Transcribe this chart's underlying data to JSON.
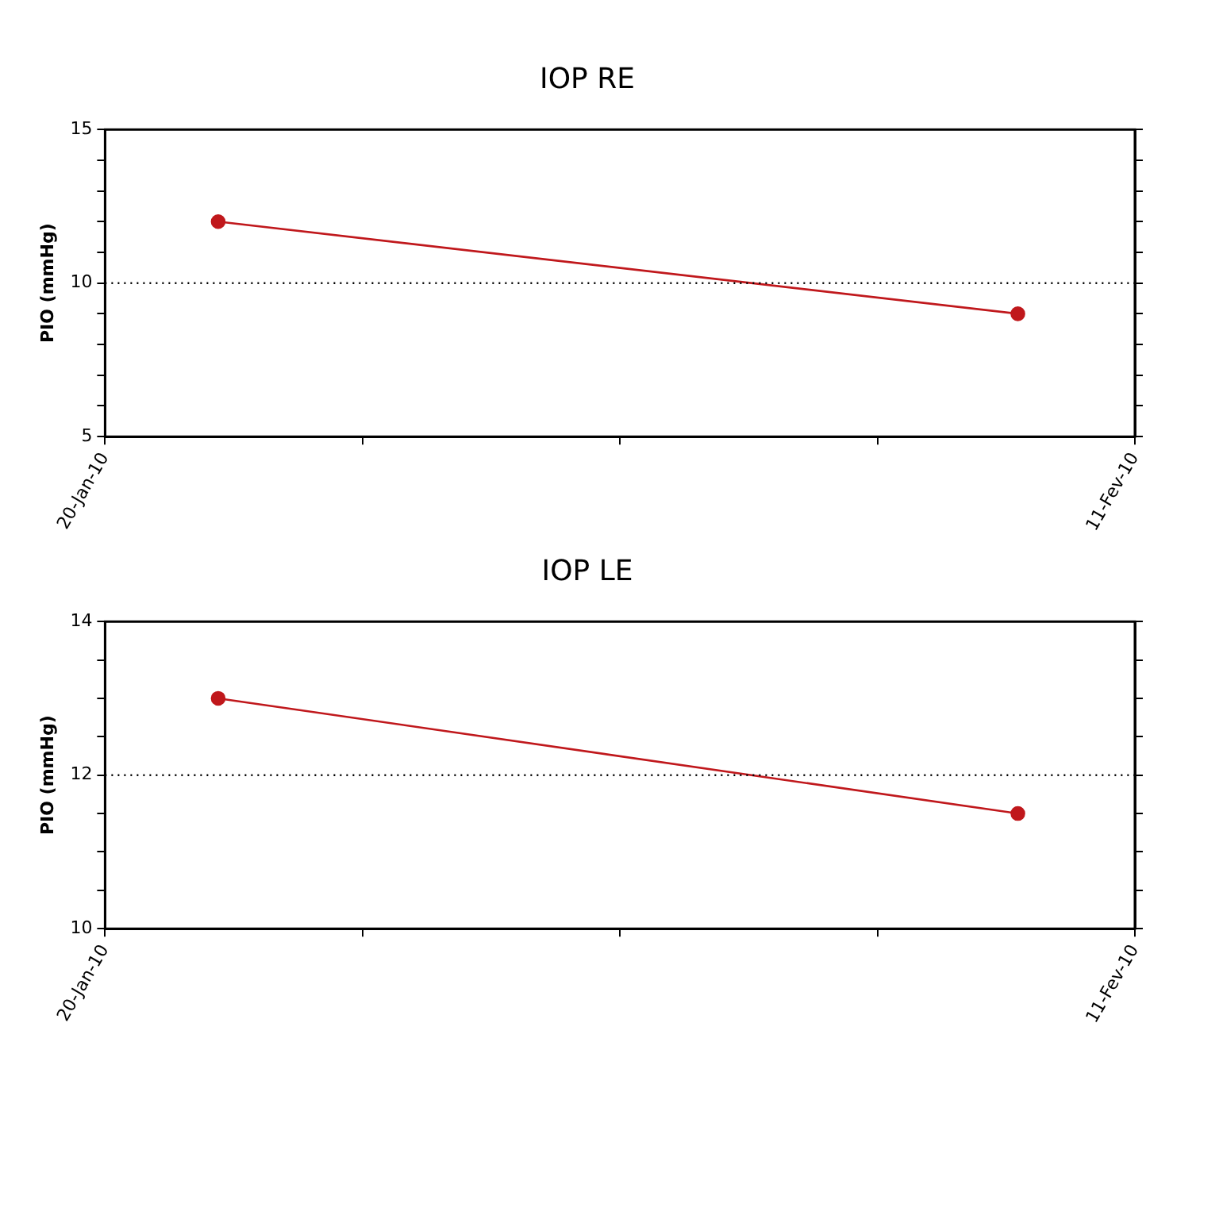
{
  "chart_data": [
    {
      "type": "line",
      "title": "IOP RE",
      "ylabel": "PIO (mmHg)",
      "marker": "circle",
      "color": "#c0181c",
      "x": [
        "--01-22T10:00",
        "--02-08T12:00"
      ],
      "values": [
        12,
        9
      ],
      "xlim": [
        "--01-20",
        "--02-11"
      ],
      "xticks": [
        {
          "value": "--01-20",
          "label": "20-Jan-10"
        },
        {
          "value": "--01-25T12:00",
          "label": null
        },
        {
          "value": "--01-31",
          "label": null
        },
        {
          "value": "--02-05T12:00",
          "label": null
        },
        {
          "value": "--02-11",
          "label": "11-Fev-10"
        }
      ],
      "ylim": [
        5,
        15
      ],
      "yticks": [
        5,
        {
          "value": 6,
          "label": null
        },
        {
          "value": 7,
          "label": null
        },
        {
          "value": 8,
          "label": null
        },
        {
          "value": 9,
          "label": null
        },
        10,
        {
          "value": 11,
          "label": null
        },
        {
          "value": 12,
          "label": null
        },
        {
          "value": 13,
          "label": null
        },
        {
          "value": 14,
          "label": null
        },
        15
      ],
      "ref_lines": [
        {
          "axis": "y",
          "value": 10,
          "color": "#000000",
          "line_style": "dotted"
        }
      ]
    },
    {
      "type": "line",
      "title": "IOP LE",
      "ylabel": "PIO (mmHg)",
      "marker": "circle",
      "color": "#c0181c",
      "x": [
        "--01-22T10:00",
        "--02-08T12:00"
      ],
      "values": [
        13,
        11.5
      ],
      "xlim": [
        "--01-20",
        "--02-11"
      ],
      "xticks": [
        {
          "value": "--01-20",
          "label": "20-Jan-10"
        },
        {
          "value": "--01-25T12:00",
          "label": null
        },
        {
          "value": "--01-31",
          "label": null
        },
        {
          "value": "--02-05T12:00",
          "label": null
        },
        {
          "value": "--02-11",
          "label": "11-Fev-10"
        }
      ],
      "ylim": [
        10,
        14
      ],
      "yticks": [
        10,
        {
          "value": 10.5,
          "label": null
        },
        {
          "value": 11,
          "label": null
        },
        {
          "value": 11.5,
          "label": null
        },
        12,
        {
          "value": 12.5,
          "label": null
        },
        {
          "value": 13,
          "label": null
        },
        {
          "value": 13.5,
          "label": null
        },
        14
      ],
      "ref_lines": [
        {
          "axis": "y",
          "value": 12,
          "color": "#000000",
          "line_style": "dotted"
        }
      ]
    }
  ]
}
